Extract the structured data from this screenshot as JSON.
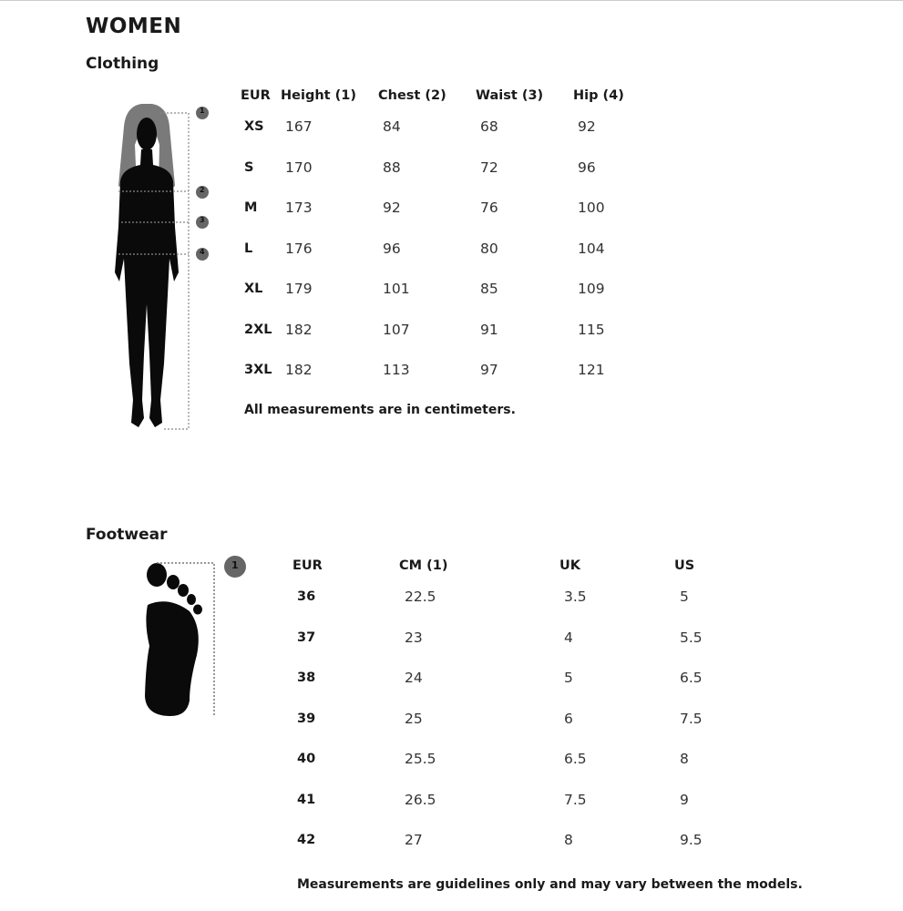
{
  "title": "WOMEN",
  "clothing": {
    "heading": "Clothing",
    "columns": [
      "EUR",
      "Height (1)",
      "Chest (2)",
      "Waist (3)",
      "Hip (4)"
    ],
    "rows": [
      [
        "XS",
        "167",
        "84",
        "68",
        "92"
      ],
      [
        "S",
        "170",
        "88",
        "72",
        "96"
      ],
      [
        "M",
        "173",
        "92",
        "76",
        "100"
      ],
      [
        "L",
        "176",
        "96",
        "80",
        "104"
      ],
      [
        "XL",
        "179",
        "101",
        "85",
        "109"
      ],
      [
        "2XL",
        "182",
        "107",
        "91",
        "115"
      ],
      [
        "3XL",
        "182",
        "113",
        "97",
        "121"
      ]
    ],
    "note": "All measurements are in centimeters.",
    "markers": [
      "1",
      "2",
      "3",
      "4"
    ]
  },
  "footwear": {
    "heading": "Footwear",
    "columns": [
      "EUR",
      "CM (1)",
      "UK",
      "US"
    ],
    "rows": [
      [
        "36",
        "22.5",
        "3.5",
        "5"
      ],
      [
        "37",
        "23",
        "4",
        "5.5"
      ],
      [
        "38",
        "24",
        "5",
        "6.5"
      ],
      [
        "39",
        "25",
        "6",
        "7.5"
      ],
      [
        "40",
        "25.5",
        "6.5",
        "8"
      ],
      [
        "41",
        "26.5",
        "7.5",
        "9"
      ],
      [
        "42",
        "27",
        "8",
        "9.5"
      ]
    ],
    "note": "Measurements are guidelines only and may vary between the models.",
    "markers": [
      "1"
    ]
  },
  "colors": {
    "text": "#1a1a1a",
    "silhouette": "#0a0a0a",
    "hair": "#7a7a7a",
    "marker": "#666666"
  }
}
